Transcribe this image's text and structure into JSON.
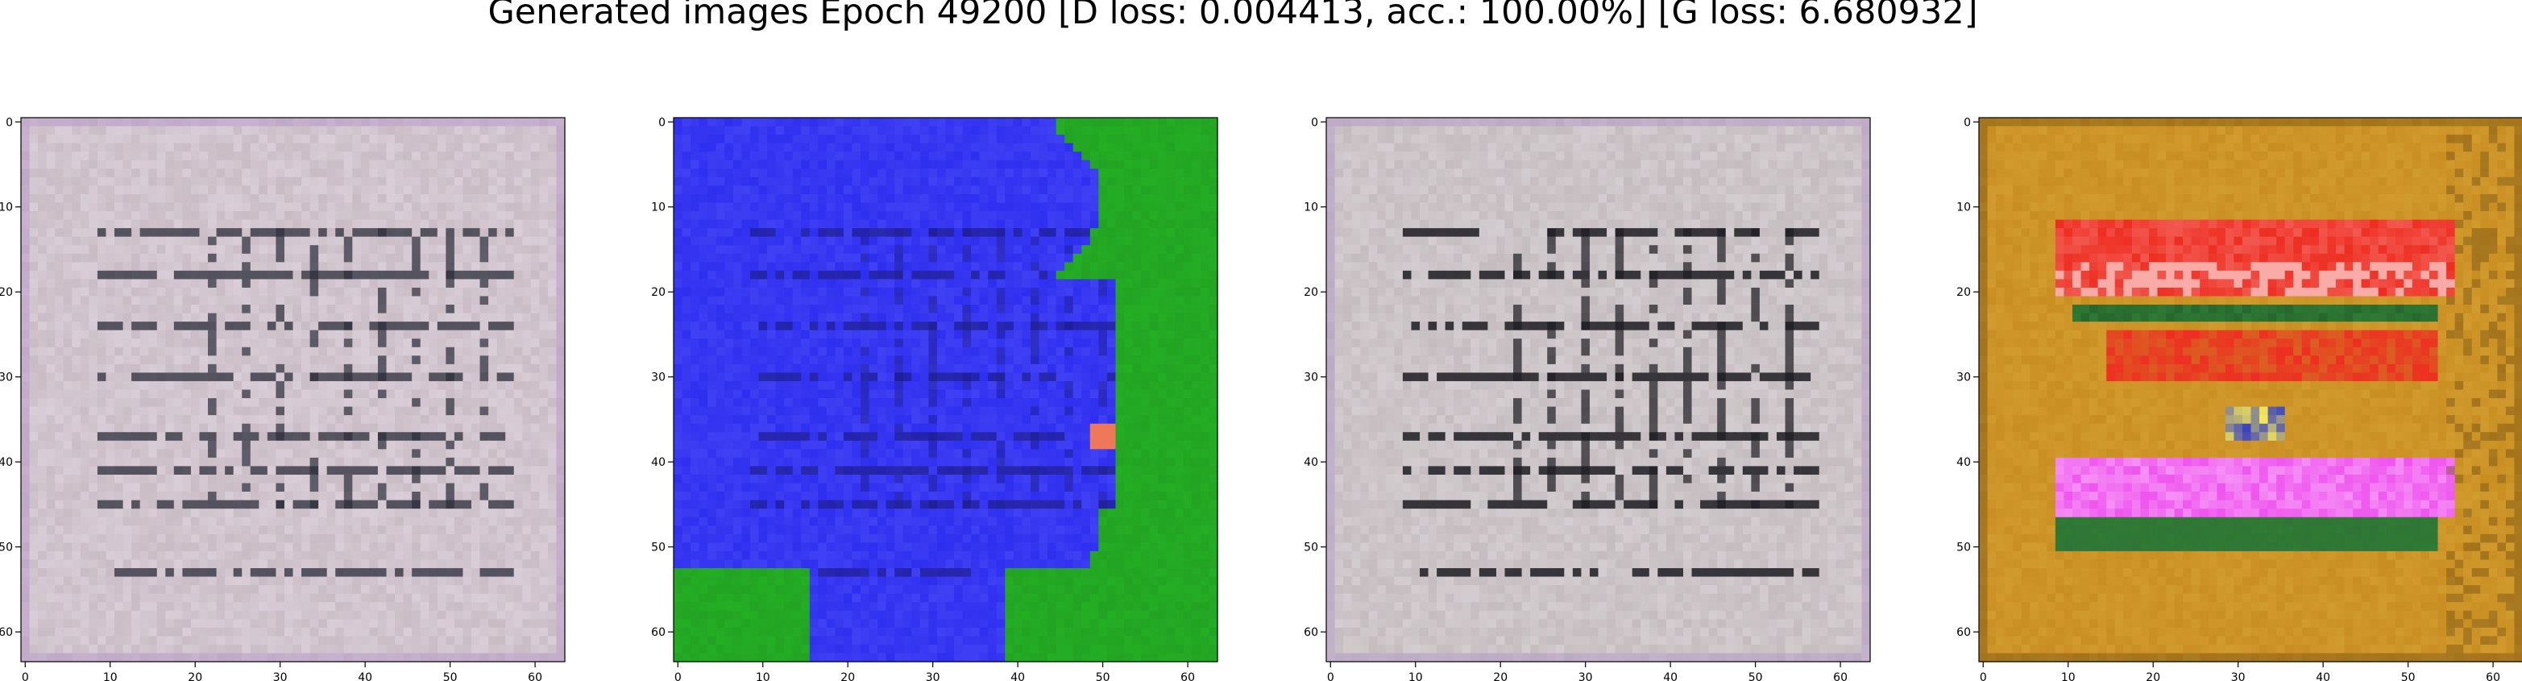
{
  "figure": {
    "title": "Generated images Epoch 49200 [D loss: 0.004413, acc.: 100.00%] [G loss: 6.680932]"
  },
  "chart_data": [
    {
      "type": "heatmap",
      "title": "",
      "xlabel": "",
      "ylabel": "",
      "xlim": [
        -0.5,
        63.5
      ],
      "ylim": [
        63.5,
        -0.5
      ],
      "x_ticks": [
        0,
        10,
        20,
        30,
        40,
        50,
        60
      ],
      "y_ticks": [
        0,
        10,
        20,
        30,
        40,
        50,
        60
      ],
      "grid": false,
      "palette": "grey-lavender",
      "colors": {
        "base": "#c9bcc4",
        "dark": "#2a2d3a",
        "light": "#e6dbe8"
      }
    },
    {
      "type": "heatmap",
      "title": "",
      "xlabel": "",
      "ylabel": "",
      "xlim": [
        -0.5,
        63.5
      ],
      "ylim": [
        63.5,
        -0.5
      ],
      "x_ticks": [
        0,
        10,
        20,
        30,
        40,
        50,
        60
      ],
      "y_ticks": [
        0,
        10,
        20,
        30,
        40,
        50,
        60
      ],
      "grid": false,
      "palette": "blue-green",
      "colors": {
        "base": "#2f2ff0",
        "dark": "#1a1a80",
        "light": "#23a323"
      }
    },
    {
      "type": "heatmap",
      "title": "",
      "xlabel": "",
      "ylabel": "",
      "xlim": [
        -0.5,
        63.5
      ],
      "ylim": [
        63.5,
        -0.5
      ],
      "x_ticks": [
        0,
        10,
        20,
        30,
        40,
        50,
        60
      ],
      "y_ticks": [
        0,
        10,
        20,
        30,
        40,
        50,
        60
      ],
      "grid": false,
      "palette": "grey-contrast",
      "colors": {
        "base": "#c4bcbe",
        "dark": "#1c1c22",
        "light": "#ece6ec"
      }
    },
    {
      "type": "heatmap",
      "title": "",
      "xlabel": "",
      "ylabel": "",
      "xlim": [
        -0.5,
        63.5
      ],
      "ylim": [
        63.5,
        -0.5
      ],
      "x_ticks": [
        0,
        10,
        20,
        30,
        40,
        50,
        60
      ],
      "y_ticks": [
        0,
        10,
        20,
        30,
        40,
        50,
        60
      ],
      "grid": false,
      "palette": "ochre-red-magenta",
      "colors": {
        "base": "#c98e22",
        "dark": "#6b4a10",
        "red": "#ee2e22",
        "magenta": "#ee55ee",
        "green": "#2f7a34"
      }
    }
  ]
}
